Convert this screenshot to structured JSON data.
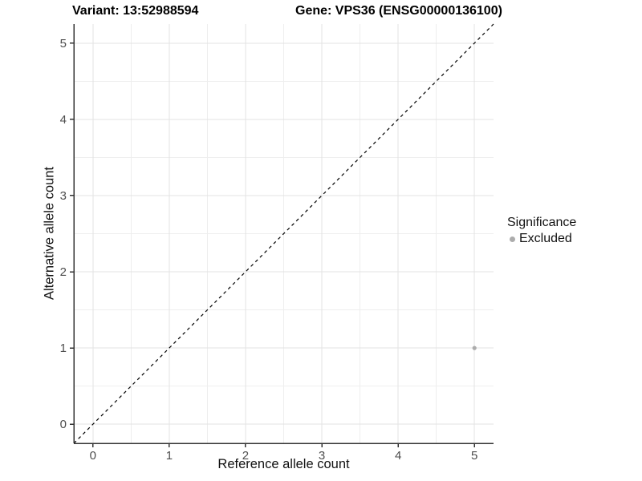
{
  "titles": {
    "variant": "Variant: 13:52988594",
    "gene": "Gene: VPS36 (ENSG00000136100)"
  },
  "legend": {
    "title": "Significance",
    "items": [
      {
        "label": "Excluded",
        "color": "#ACACAC"
      }
    ]
  },
  "chart_data": {
    "type": "scatter",
    "title": "Variant: 13:52988594 | Gene: VPS36 (ENSG00000136100)",
    "xlabel": "Reference allele count",
    "ylabel": "Alternative allele count",
    "xlim": [
      -0.25,
      5.25
    ],
    "ylim": [
      -0.25,
      5.25
    ],
    "x_ticks": [
      0,
      1,
      2,
      3,
      4,
      5
    ],
    "y_ticks": [
      0,
      1,
      2,
      3,
      4,
      5
    ],
    "grid": {
      "major_step": 1,
      "minor_step": 0.5,
      "major_color": "#e3e3e3",
      "minor_color": "#eeeeee"
    },
    "reference_line": {
      "type": "identity y=x",
      "style": "dashed",
      "color": "#000000",
      "from": [
        -0.25,
        -0.25
      ],
      "to": [
        5.25,
        5.25
      ]
    },
    "series": [
      {
        "name": "Excluded",
        "color": "#ACACAC",
        "points": [
          {
            "x": 5,
            "y": 1
          }
        ]
      }
    ],
    "legend_position": "right",
    "axis_color": "#333333",
    "tick_label_color": "#4d4d4d"
  }
}
